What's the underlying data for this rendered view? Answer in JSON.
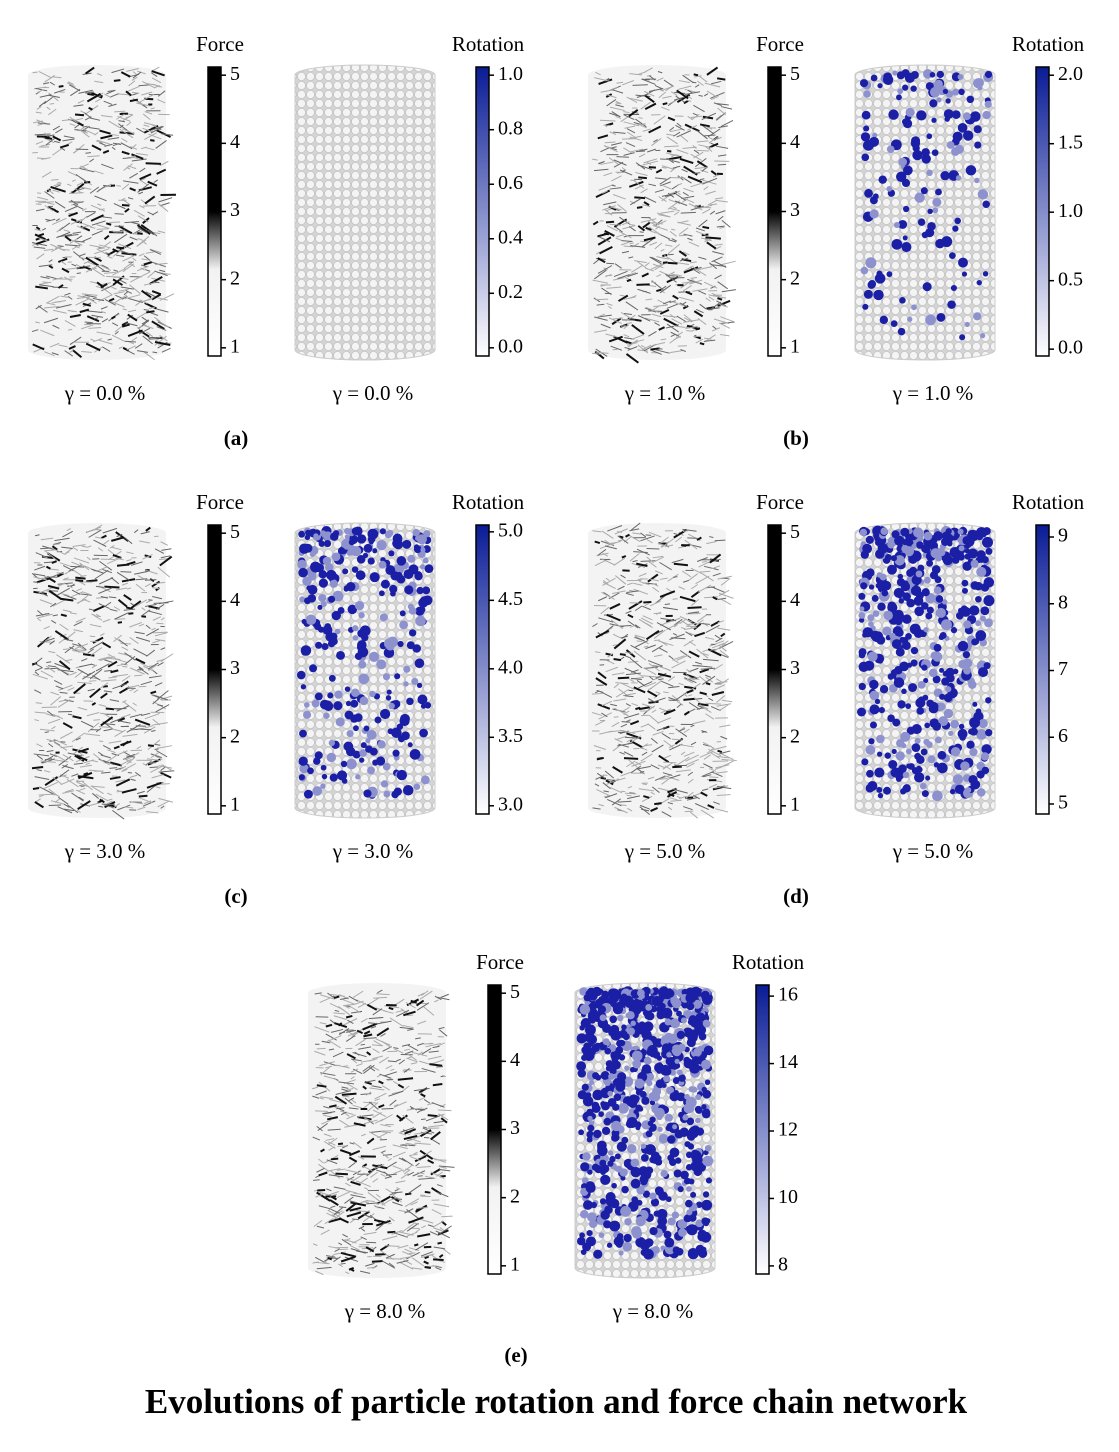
{
  "title": "Evolutions of particle rotation and force chain network",
  "panels": [
    {
      "label": "(a)",
      "force": {
        "title": "Force",
        "range": [
          0.88,
          5.12
        ],
        "ticks": [
          1,
          2,
          3,
          4,
          5
        ],
        "caption": "γ = 0.0 %"
      },
      "rotation": {
        "title": "Rotation",
        "range": [
          -0.03,
          1.03
        ],
        "ticks": [
          {
            "value": 0,
            "label": "0.0"
          },
          0.2,
          0.4,
          0.6,
          0.8,
          {
            "value": 1,
            "label": "1.0"
          }
        ],
        "caption": "γ = 0.0 %"
      }
    },
    {
      "label": "(b)",
      "force": {
        "title": "Force",
        "range": [
          0.88,
          5.12
        ],
        "ticks": [
          1,
          2,
          3,
          4,
          5
        ],
        "caption": "γ = 1.0 %"
      },
      "rotation": {
        "title": "Rotation",
        "range": [
          -0.05,
          2.06
        ],
        "ticks": [
          {
            "value": 0,
            "label": "0.0"
          },
          0.5,
          {
            "value": 1,
            "label": "1.0"
          },
          1.5,
          {
            "value": 2,
            "label": "2.0"
          }
        ],
        "caption": "γ = 1.0 %"
      }
    },
    {
      "label": "(c)",
      "force": {
        "title": "Force",
        "range": [
          0.88,
          5.12
        ],
        "ticks": [
          1,
          2,
          3,
          4,
          5
        ],
        "caption": "γ = 3.0 %"
      },
      "rotation": {
        "title": "Rotation",
        "range": [
          2.94,
          5.05
        ],
        "ticks": [
          {
            "value": 3,
            "label": "3.0"
          },
          3.5,
          {
            "value": 4,
            "label": "4.0"
          },
          4.5,
          {
            "value": 5,
            "label": "5.0"
          }
        ],
        "caption": "γ = 3.0 %"
      }
    },
    {
      "label": "(d)",
      "force": {
        "title": "Force",
        "range": [
          0.88,
          5.12
        ],
        "ticks": [
          1,
          2,
          3,
          4,
          5
        ],
        "caption": "γ = 5.0 %"
      },
      "rotation": {
        "title": "Rotation",
        "range": [
          4.85,
          9.18
        ],
        "ticks": [
          5,
          6,
          7,
          8,
          9
        ],
        "caption": "γ = 5.0 %"
      }
    },
    {
      "label": "(e)",
      "force": {
        "title": "Force",
        "range": [
          0.88,
          5.12
        ],
        "ticks": [
          1,
          2,
          3,
          4,
          5
        ],
        "caption": "γ = 8.0 %"
      },
      "rotation": {
        "title": "Rotation",
        "range": [
          7.76,
          16.33
        ],
        "ticks": [
          8,
          10,
          12,
          14,
          16
        ],
        "caption": "γ = 8.0 %"
      }
    }
  ]
}
